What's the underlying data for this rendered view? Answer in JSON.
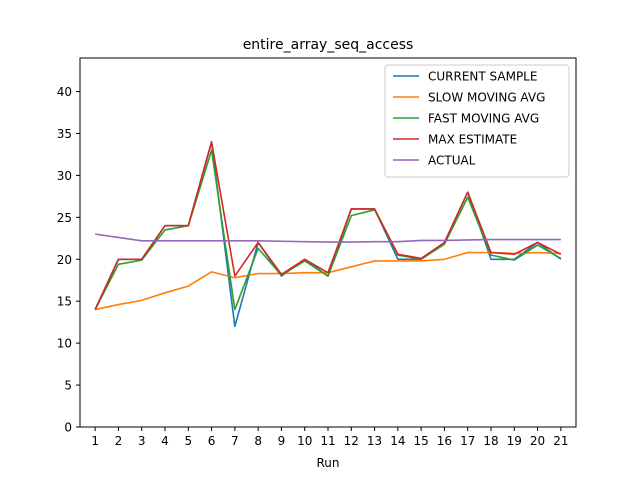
{
  "chart_data": {
    "type": "line",
    "title": "entire_array_seq_access",
    "xlabel": "Run",
    "ylabel": "",
    "x": [
      1,
      2,
      3,
      4,
      5,
      6,
      7,
      8,
      9,
      10,
      11,
      12,
      13,
      14,
      15,
      16,
      17,
      18,
      19,
      20,
      21
    ],
    "xlim": [
      0.35,
      21.65
    ],
    "ylim": [
      0,
      44
    ],
    "xticks": [
      1,
      2,
      3,
      4,
      5,
      6,
      7,
      8,
      9,
      10,
      11,
      12,
      13,
      14,
      15,
      16,
      17,
      18,
      19,
      20,
      21
    ],
    "yticks": [
      0,
      5,
      10,
      15,
      20,
      25,
      30,
      35,
      40
    ],
    "grid": false,
    "legend_position": "top-right",
    "series": [
      {
        "name": "CURRENT SAMPLE",
        "color": "#1f77b4",
        "values": [
          14,
          20,
          20,
          24,
          24,
          34,
          12,
          22,
          18,
          20,
          18,
          26,
          26,
          20,
          20,
          22,
          28,
          20,
          20,
          22,
          20
        ]
      },
      {
        "name": "SLOW MOVING AVG",
        "color": "#ff7f0e",
        "values": [
          14,
          14.6,
          15.1,
          16,
          16.8,
          18.5,
          17.8,
          18.3,
          18.3,
          18.4,
          18.4,
          19.1,
          19.8,
          19.8,
          19.8,
          20,
          20.8,
          20.8,
          20.7,
          20.8,
          20.7
        ]
      },
      {
        "name": "FAST MOVING AVG",
        "color": "#2ca02c",
        "values": [
          14,
          19.4,
          19.9,
          23.5,
          24,
          33,
          14,
          21.3,
          18.1,
          19.8,
          18,
          25.2,
          25.9,
          20.5,
          20,
          21.8,
          27.4,
          20.5,
          19.9,
          21.7,
          20.1
        ]
      },
      {
        "name": "MAX ESTIMATE",
        "color": "#d62728",
        "values": [
          14,
          20,
          20,
          24,
          24,
          34,
          18,
          22,
          18.2,
          20,
          18.4,
          26,
          26,
          20.6,
          20.1,
          22,
          28,
          20.8,
          20.6,
          22,
          20.6
        ]
      },
      {
        "name": "ACTUAL",
        "color": "#9467bd",
        "values": [
          23,
          22.6,
          22.2,
          22.2,
          22.2,
          22.2,
          22.2,
          22.2,
          22.15,
          22.1,
          22.05,
          22.05,
          22.1,
          22.1,
          22.25,
          22.25,
          22.3,
          22.35,
          22.35,
          22.35,
          22.35
        ]
      }
    ]
  }
}
